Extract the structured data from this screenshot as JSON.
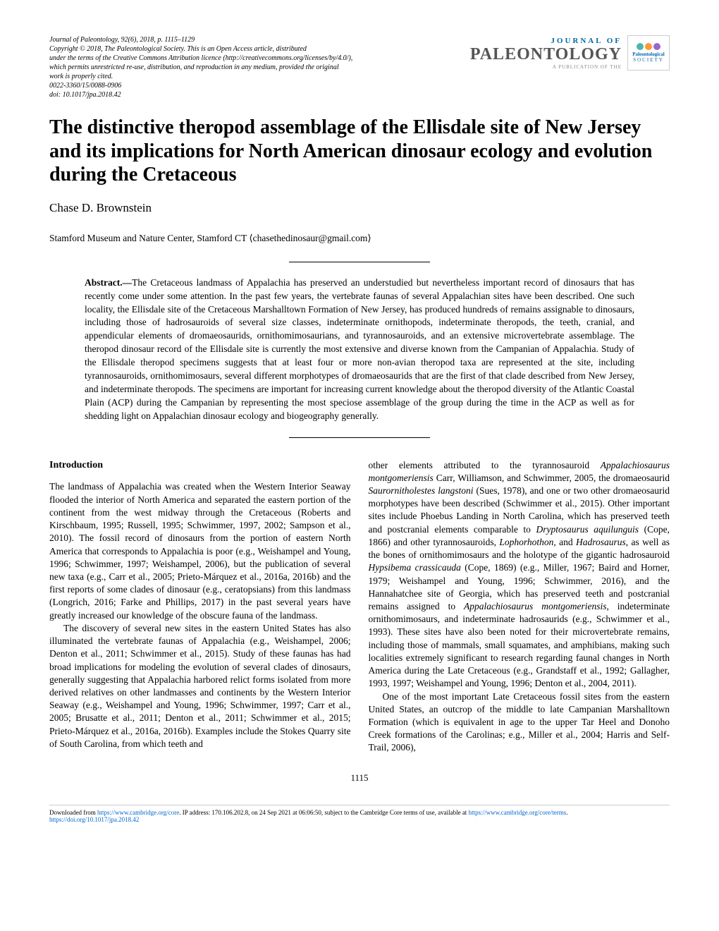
{
  "header": {
    "journal_line": "Journal of Paleontology, 92(6), 2018, p. 1115–1129",
    "copyright": "Copyright © 2018, The Paleontological Society. This is an Open Access article, distributed",
    "license1": "under the terms of the Creative Commons Attribution licence (http://creativecommons.org/licenses/by/4.0/),",
    "license2": "which permits unrestricted re-use, distribution, and reproduction in any medium, provided the original",
    "license3": "work is properly cited.",
    "issn": "0022-3360/15/0088-0906",
    "doi": "doi: 10.1017/jpa.2018.42",
    "logo_journal_of": "JOURNAL OF",
    "logo_paleontology": "PALEONTOLOGY",
    "logo_sub": "A PUBLICATION OF THE",
    "society_name": "Paleontological",
    "society_sub": "SOCIETY"
  },
  "title": "The distinctive theropod assemblage of the Ellisdale site of New Jersey and its implications for North American dinosaur ecology and evolution during the Cretaceous",
  "author": "Chase D. Brownstein",
  "affiliation": "Stamford Museum and Nature Center, Stamford CT ⟨chasethedinosaur@gmail.com⟩",
  "abstract": {
    "label": "Abstract.—",
    "text": "The Cretaceous landmass of Appalachia has preserved an understudied but nevertheless important record of dinosaurs that has recently come under some attention. In the past few years, the vertebrate faunas of several Appalachian sites have been described. One such locality, the Ellisdale site of the Cretaceous Marshalltown Formation of New Jersey, has produced hundreds of remains assignable to dinosaurs, including those of hadrosauroids of several size classes, indeterminate ornithopods, indeterminate theropods, the teeth, cranial, and appendicular elements of dromaeosaurids, ornithomimosaurians, and tyrannosauroids, and an extensive microvertebrate assemblage. The theropod dinosaur record of the Ellisdale site is currently the most extensive and diverse known from the Campanian of Appalachia. Study of the Ellisdale theropod specimens suggests that at least four or more non-avian theropod taxa are represented at the site, including tyrannosauroids, ornithomimosaurs, several different morphotypes of dromaeosaurids that are the first of that clade described from New Jersey, and indeterminate theropods. The specimens are important for increasing current knowledge about the theropod diversity of the Atlantic Coastal Plain (ACP) during the Campanian by representing the most speciose assemblage of the group during the time in the ACP as well as for shedding light on Appalachian dinosaur ecology and biogeography generally."
  },
  "introduction": {
    "heading": "Introduction",
    "para1": "The landmass of Appalachia was created when the Western Interior Seaway flooded the interior of North America and separated the eastern portion of the continent from the west midway through the Cretaceous (Roberts and Kirschbaum, 1995; Russell, 1995; Schwimmer, 1997, 2002; Sampson et al., 2010). The fossil record of dinosaurs from the portion of eastern North America that corresponds to Appalachia is poor (e.g., Weishampel and Young, 1996; Schwimmer, 1997; Weishampel, 2006), but the publication of several new taxa (e.g., Carr et al., 2005; Prieto-Márquez et al., 2016a, 2016b) and the first reports of some clades of dinosaur (e.g., ceratopsians) from this landmass (Longrich, 2016; Farke and Phillips, 2017) in the past several years have greatly increased our knowledge of the obscure fauna of the landmass.",
    "para2": "The discovery of several new sites in the eastern United States has also illuminated the vertebrate faunas of Appalachia (e.g., Weishampel, 2006; Denton et al., 2011; Schwimmer et al., 2015). Study of these faunas has had broad implications for modeling the evolution of several clades of dinosaurs, generally suggesting that Appalachia harbored relict forms isolated from more derived relatives on other landmasses and continents by the Western Interior Seaway (e.g., Weishampel and Young, 1996; Schwimmer, 1997; Carr et al., 2005; Brusatte et al., 2011; Denton et al., 2011; Schwimmer et al., 2015; Prieto-Márquez et al., 2016a, 2016b). Examples include the Stokes Quarry site of South Carolina, from which teeth and"
  },
  "column2": {
    "para1_pre": "other elements attributed to the tyrannosauroid ",
    "taxon1": "Appalachiosaurus montgomeriensis",
    "para1_mid1": " Carr, Williamson, and Schwimmer, 2005, the dromaeosaurid ",
    "taxon2": "Saurornitholestes langstoni",
    "para1_mid2": " (Sues, 1978), and one or two other dromaeosaurid morphotypes have been described (Schwimmer et al., 2015). Other important sites include Phoebus Landing in North Carolina, which has preserved teeth and postcranial elements comparable to ",
    "taxon3": "Dryptosaurus aquilunguis",
    "para1_mid3": " (Cope, 1866) and other tyrannosauroids, ",
    "taxon4": "Lophorhothon,",
    "para1_mid4": " and ",
    "taxon5": "Hadrosaurus",
    "para1_mid5": ", as well as the bones of ornithomimosaurs and the holotype of the gigantic hadrosauroid ",
    "taxon6": "Hypsibema crassicauda",
    "para1_mid6": " (Cope, 1869) (e.g., Miller, 1967; Baird and Horner, 1979; Weishampel and Young, 1996; Schwimmer, 2016), and the Hannahatchee site of Georgia, which has preserved teeth and postcranial remains assigned to ",
    "taxon7": "Appalachiosaurus montgomeriensis",
    "para1_end": ", indeterminate ornithomimosaurs, and indeterminate hadrosaurids (e.g., Schwimmer et al., 1993). These sites have also been noted for their microvertebrate remains, including those of mammals, small squamates, and amphibians, making such localities extremely significant to research regarding faunal changes in North America during the Late Cretaceous (e.g., Grandstaff et al., 1992; Gallagher, 1993, 1997; Weishampel and Young, 1996; Denton et al., 2004, 2011).",
    "para2": "One of the most important Late Cretaceous fossil sites from the eastern United States, an outcrop of the middle to late Campanian Marshalltown Formation (which is equivalent in age to the upper Tar Heel and Donoho Creek formations of the Carolinas; e.g., Miller et al., 2004; Harris and Self-Trail, 2006),"
  },
  "page_number": "1115",
  "footer": {
    "text1": "Downloaded from ",
    "link1": "https://www.cambridge.org/core",
    "text2": ". IP address: 170.106.202.8, on 24 Sep 2021 at 06:06:50, subject to the Cambridge Core terms of use, available at ",
    "link2": "https://www.cambridge.org/core/terms",
    "text3": ". ",
    "link3": "https://doi.org/10.1017/jpa.2018.42"
  }
}
